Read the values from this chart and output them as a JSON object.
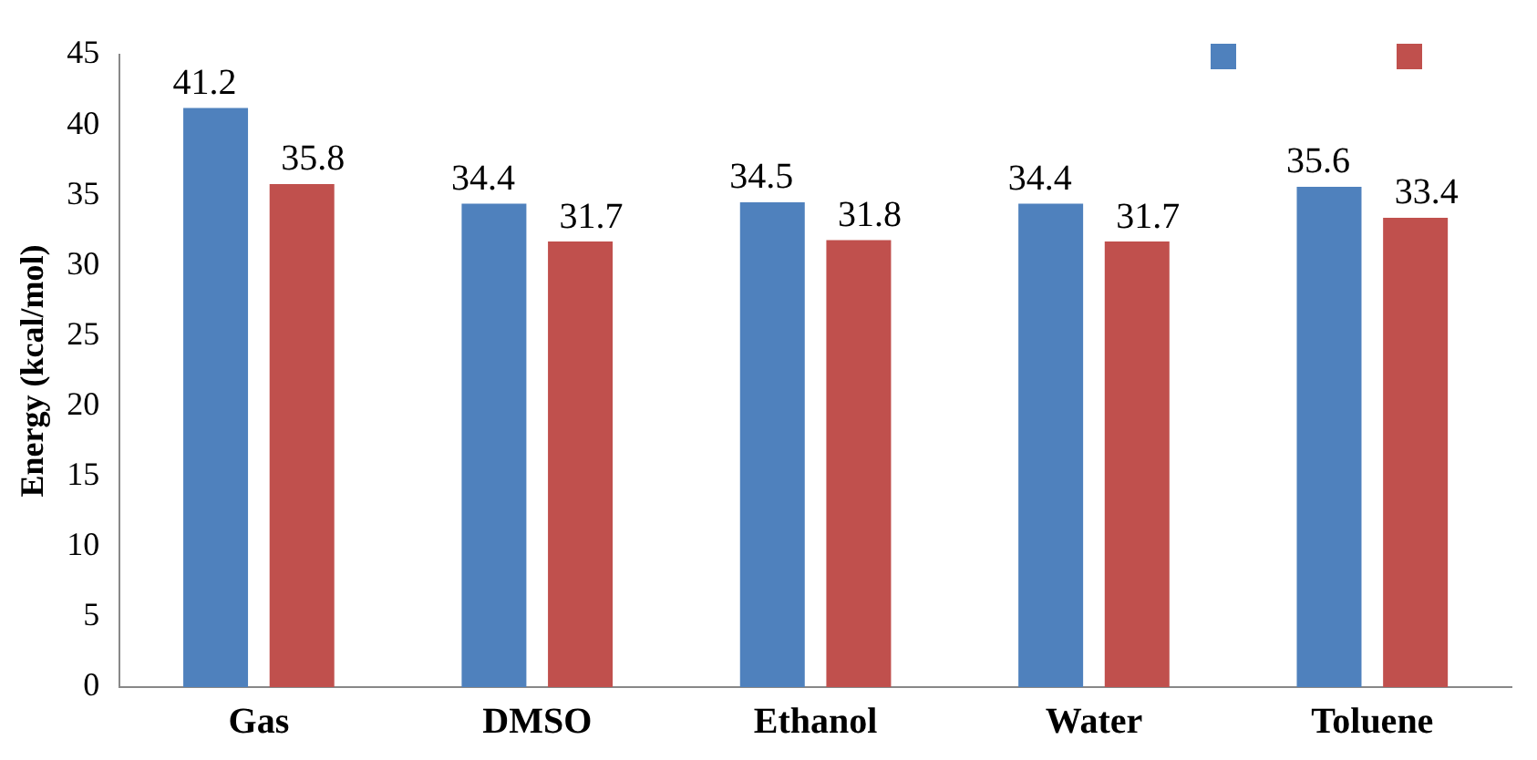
{
  "chart_data": {
    "type": "bar",
    "ylabel": "Energy (kcal/mol)",
    "categories": [
      "Gas",
      "DMSO",
      "Ethanol",
      "Water",
      "Toluene"
    ],
    "series": [
      {
        "color": "#4f81bd",
        "values": [
          41.2,
          34.4,
          34.5,
          34.4,
          35.6
        ]
      },
      {
        "color": "#c0504d",
        "values": [
          35.8,
          31.7,
          31.8,
          31.7,
          33.4
        ]
      }
    ],
    "ylim": [
      0,
      45
    ],
    "yticks": [
      0,
      5,
      10,
      15,
      20,
      25,
      30,
      35,
      40,
      45
    ],
    "grid": false,
    "data_labels": true
  }
}
